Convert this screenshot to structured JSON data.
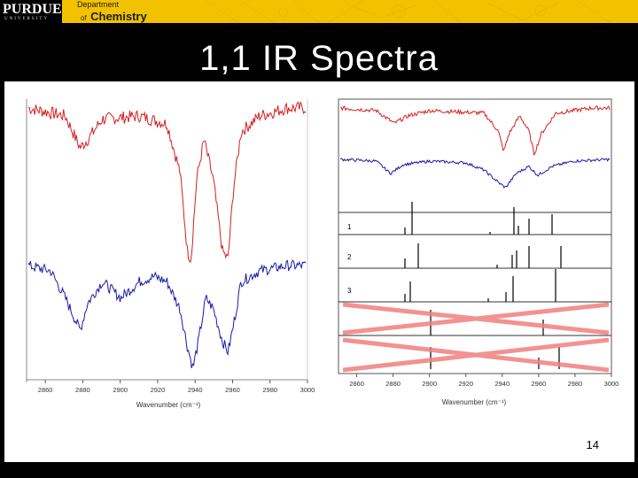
{
  "header": {
    "university_logo": "PURDUE",
    "university_sub": "UNIVERSITY",
    "department_line1": "Department",
    "department_line2": "of",
    "department_line3": "Chemistry"
  },
  "slide": {
    "title": "1,1 IR Spectra",
    "page_number": "14"
  },
  "colors": {
    "gold": "#f2c200",
    "red_trace": "#d42020",
    "blue_trace": "#1a1aa8",
    "cross": "#f08080"
  },
  "left_chart": {
    "x_ticks": [
      "2860",
      "2880",
      "2900",
      "2920",
      "2940",
      "2960",
      "2980",
      "3000"
    ],
    "xlabel": "Wavenumber (cm⁻¹)"
  },
  "right_chart": {
    "x_ticks": [
      "2860",
      "2880",
      "2900",
      "2920",
      "2940",
      "2960",
      "2980",
      "3000"
    ],
    "xlabel": "Wavenumber (cm⁻¹)",
    "panel_labels": [
      "1",
      "2",
      "3"
    ]
  },
  "chart_data": [
    {
      "type": "line",
      "title": "",
      "xlabel": "Wavenumber (cm⁻¹)",
      "xlim": [
        2850,
        3000
      ],
      "series": [
        {
          "x": [
            2850,
            2870,
            2878,
            2882,
            2890,
            2910,
            2925,
            2932,
            2936,
            2938,
            2941,
            2945,
            2950,
            2955,
            2958,
            2961,
            2965,
            2975,
            2990,
            3000
          ],
          "y": [
            1.0,
            0.95,
            0.75,
            0.8,
            0.93,
            0.95,
            0.9,
            0.6,
            0.1,
            0.05,
            0.55,
            0.8,
            0.55,
            0.1,
            0.05,
            0.5,
            0.85,
            0.95,
            1.0,
            1.0
          ]
        },
        {
          "x": [
            2850,
            2862,
            2870,
            2878,
            2882,
            2890,
            2900,
            2910,
            2918,
            2925,
            2932,
            2936,
            2939,
            2942,
            2946,
            2950,
            2955,
            2958,
            2961,
            2965,
            2975,
            2990,
            3000
          ],
          "y": [
            1.0,
            0.95,
            0.7,
            0.4,
            0.65,
            0.85,
            0.7,
            0.85,
            0.9,
            0.85,
            0.6,
            0.25,
            0.05,
            0.3,
            0.7,
            0.6,
            0.3,
            0.2,
            0.45,
            0.85,
            0.95,
            1.0,
            1.0
          ]
        }
      ]
    },
    {
      "type": "line",
      "title": "",
      "xlabel": "Wavenumber (cm⁻¹)",
      "xlim": [
        2850,
        3000
      ],
      "series": [
        {
          "x": [
            2850,
            2870,
            2880,
            2888,
            2900,
            2930,
            2938,
            2941,
            2944,
            2950,
            2955,
            2958,
            2962,
            2970,
            2990,
            3000
          ],
          "y": [
            1.0,
            0.95,
            0.7,
            0.85,
            0.95,
            0.9,
            0.55,
            0.15,
            0.5,
            0.85,
            0.55,
            0.1,
            0.5,
            0.9,
            1.0,
            1.0
          ]
        },
        {
          "x": [
            2850,
            2870,
            2878,
            2885,
            2900,
            2920,
            2930,
            2938,
            2942,
            2948,
            2955,
            2960,
            2968,
            2980,
            3000
          ],
          "y": [
            1.0,
            0.95,
            0.6,
            0.85,
            0.95,
            0.9,
            0.7,
            0.35,
            0.2,
            0.6,
            0.8,
            0.55,
            0.8,
            0.95,
            1.0
          ]
        }
      ]
    }
  ]
}
